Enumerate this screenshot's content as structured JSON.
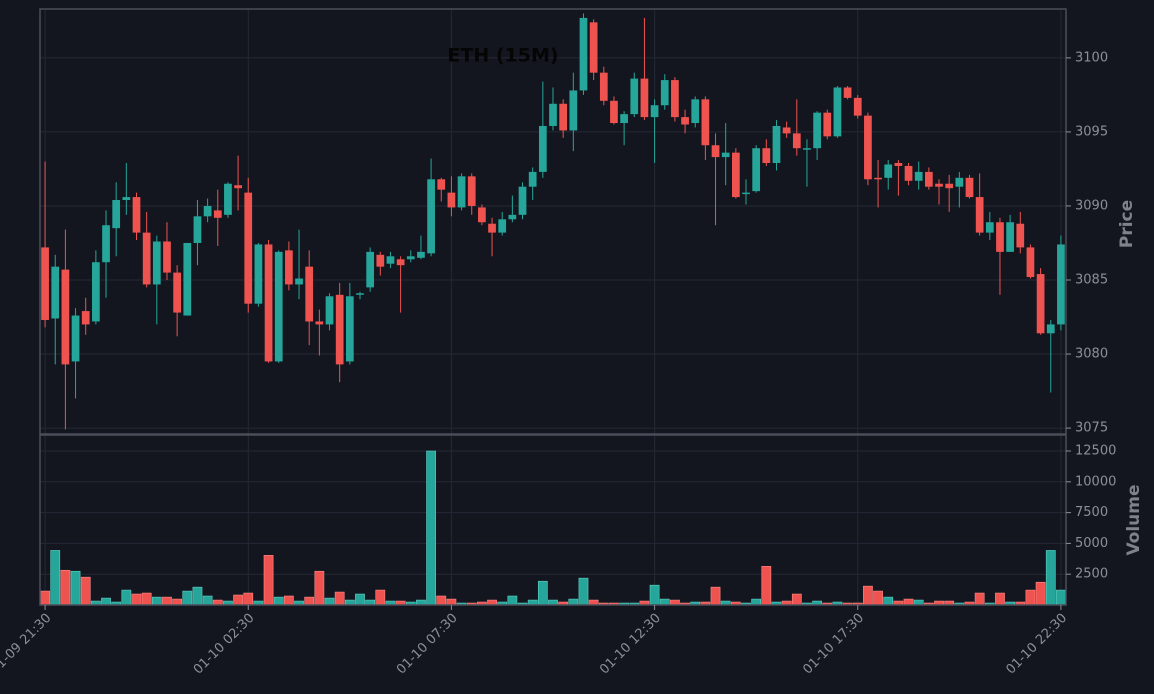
{
  "chart_data": [
    {
      "type": "candlestick",
      "title": "ETH (15M)",
      "ylabel": "Price",
      "up_color": "#26a69a",
      "down_color": "#ef5350",
      "grid": true,
      "xlim": [
        -0.5,
        100.5
      ],
      "ylim": [
        3074.6,
        3103.3
      ],
      "yticks": [
        3075,
        3080,
        3085,
        3090,
        3095,
        3100
      ],
      "open": [
        3087.2,
        3082.4,
        3085.7,
        3079.5,
        3082.9,
        3082.2,
        3086.2,
        3088.5,
        3090.4,
        3090.6,
        3088.2,
        3084.7,
        3087.6,
        3085.5,
        3082.6,
        3087.5,
        3089.3,
        3089.7,
        3089.4,
        3091.4,
        3090.9,
        3083.4,
        3087.4,
        3079.5,
        3087.0,
        3084.7,
        3085.9,
        3082.2,
        3082.0,
        3084.0,
        3079.5,
        3084.0,
        3084.5,
        3086.7,
        3086.1,
        3086.4,
        3086.4,
        3086.5,
        3086.8,
        3091.8,
        3090.9,
        3089.9,
        3092.0,
        3089.9,
        3088.8,
        3088.2,
        3089.1,
        3089.4,
        3091.3,
        3092.3,
        3095.4,
        3096.9,
        3095.1,
        3097.8,
        3102.4,
        3099.0,
        3097.1,
        3095.6,
        3096.2,
        3098.6,
        3096.0,
        3096.8,
        3098.5,
        3096.0,
        3095.6,
        3097.2,
        3094.1,
        3093.3,
        3093.6,
        3090.8,
        3091.0,
        3093.9,
        3092.9,
        3095.3,
        3094.9,
        3093.8,
        3093.9,
        3096.3,
        3094.7,
        3098.0,
        3097.3,
        3096.1,
        3091.9,
        3091.9,
        3092.9,
        3092.7,
        3091.7,
        3092.3,
        3091.5,
        3091.5,
        3091.3,
        3091.9,
        3090.6,
        3088.2,
        3088.9,
        3086.9,
        3088.8,
        3087.2,
        3085.4,
        3081.4,
        3082.0
      ],
      "high": [
        3093.0,
        3086.7,
        3088.4,
        3083.1,
        3083.8,
        3087.0,
        3089.7,
        3091.6,
        3092.9,
        3090.9,
        3089.6,
        3088.0,
        3088.9,
        3086.0,
        3087.5,
        3090.4,
        3090.5,
        3091.1,
        3091.6,
        3093.4,
        3091.9,
        3087.5,
        3087.7,
        3087.0,
        3087.6,
        3088.4,
        3087.0,
        3083.0,
        3084.1,
        3084.8,
        3084.8,
        3084.2,
        3087.2,
        3086.9,
        3086.9,
        3086.6,
        3087.0,
        3088.0,
        3093.2,
        3091.9,
        3092.0,
        3092.2,
        3092.2,
        3090.1,
        3089.2,
        3089.6,
        3090.7,
        3091.6,
        3092.6,
        3098.4,
        3098.0,
        3097.2,
        3099.0,
        3103.0,
        3102.6,
        3099.4,
        3097.4,
        3096.4,
        3099.0,
        3102.7,
        3097.2,
        3098.9,
        3098.7,
        3096.5,
        3097.4,
        3097.4,
        3094.9,
        3095.6,
        3093.9,
        3091.8,
        3094.1,
        3094.5,
        3095.8,
        3095.7,
        3097.2,
        3094.5,
        3096.4,
        3096.5,
        3098.1,
        3098.1,
        3097.5,
        3096.3,
        3093.1,
        3093.1,
        3093.1,
        3092.9,
        3093.0,
        3092.6,
        3091.8,
        3092.1,
        3092.3,
        3092.1,
        3092.2,
        3089.6,
        3089.2,
        3089.4,
        3089.6,
        3087.4,
        3085.8,
        3082.3,
        3088.0
      ],
      "low": [
        3081.8,
        3079.3,
        3074.9,
        3077.0,
        3081.3,
        3082.0,
        3083.8,
        3086.6,
        3089.4,
        3087.7,
        3084.5,
        3082.0,
        3085.0,
        3081.2,
        3082.6,
        3086.0,
        3088.9,
        3087.3,
        3089.2,
        3089.7,
        3082.8,
        3083.2,
        3079.4,
        3079.4,
        3084.3,
        3083.7,
        3080.6,
        3079.9,
        3081.6,
        3078.1,
        3079.3,
        3083.7,
        3084.2,
        3085.3,
        3085.8,
        3082.8,
        3086.2,
        3086.4,
        3086.6,
        3090.3,
        3089.3,
        3089.7,
        3089.4,
        3088.7,
        3086.6,
        3088.0,
        3088.9,
        3089.1,
        3090.4,
        3091.9,
        3095.1,
        3094.6,
        3093.7,
        3097.5,
        3098.5,
        3096.8,
        3095.5,
        3094.1,
        3096.0,
        3095.8,
        3092.9,
        3096.5,
        3095.7,
        3094.9,
        3095.3,
        3093.1,
        3088.7,
        3091.4,
        3090.5,
        3090.1,
        3090.9,
        3092.7,
        3092.4,
        3094.6,
        3093.4,
        3091.3,
        3093.1,
        3094.5,
        3094.6,
        3097.2,
        3095.9,
        3091.4,
        3089.9,
        3091.1,
        3090.7,
        3091.4,
        3091.1,
        3091.1,
        3090.1,
        3089.6,
        3089.9,
        3090.5,
        3088.0,
        3087.7,
        3084.0,
        3086.9,
        3086.8,
        3085.1,
        3081.3,
        3077.4,
        3081.6
      ],
      "close": [
        3082.3,
        3085.9,
        3079.3,
        3082.6,
        3082.0,
        3086.2,
        3088.7,
        3090.4,
        3090.6,
        3088.2,
        3084.7,
        3087.6,
        3085.5,
        3082.8,
        3087.5,
        3089.3,
        3090.0,
        3089.2,
        3091.5,
        3091.2,
        3083.4,
        3087.4,
        3079.5,
        3086.9,
        3084.7,
        3085.1,
        3082.2,
        3082.0,
        3083.9,
        3079.3,
        3083.9,
        3084.1,
        3086.9,
        3085.9,
        3086.6,
        3086.0,
        3086.6,
        3086.9,
        3091.8,
        3091.1,
        3089.9,
        3092.0,
        3090.0,
        3088.9,
        3088.2,
        3089.1,
        3089.4,
        3091.3,
        3092.3,
        3095.4,
        3096.9,
        3095.1,
        3097.8,
        3102.7,
        3099.0,
        3097.1,
        3095.6,
        3096.2,
        3098.6,
        3096.0,
        3096.8,
        3098.5,
        3096.0,
        3095.5,
        3097.2,
        3094.1,
        3093.3,
        3093.6,
        3090.6,
        3090.9,
        3093.9,
        3092.9,
        3095.4,
        3094.9,
        3093.9,
        3093.9,
        3096.3,
        3094.7,
        3098.0,
        3097.3,
        3096.1,
        3091.8,
        3091.8,
        3092.8,
        3092.7,
        3091.7,
        3092.3,
        3091.3,
        3091.3,
        3091.2,
        3091.9,
        3090.6,
        3088.2,
        3088.9,
        3086.9,
        3088.9,
        3087.2,
        3085.2,
        3081.4,
        3082.0,
        3087.4
      ]
    },
    {
      "type": "bar",
      "ylabel": "Volume",
      "grid": true,
      "xlim": [
        -0.5,
        100.5
      ],
      "ylim": [
        0,
        13800
      ],
      "yticks": [
        2500,
        5000,
        7500,
        10000,
        12500
      ],
      "xticks": [
        {
          "value": 0,
          "label": "01-09 21:30"
        },
        {
          "value": 20,
          "label": "01-10 02:30"
        },
        {
          "value": 40,
          "label": "01-10 07:30"
        },
        {
          "value": 60,
          "label": "01-10 12:30"
        },
        {
          "value": 80,
          "label": "01-10 17:30"
        },
        {
          "value": 100,
          "label": "01-10 22:30"
        }
      ],
      "values": [
        1130,
        4430,
        2820,
        2740,
        2260,
        320,
        560,
        240,
        1210,
        890,
        970,
        640,
        640,
        480,
        1130,
        1450,
        730,
        400,
        320,
        810,
        970,
        320,
        4030,
        640,
        730,
        320,
        640,
        2740,
        560,
        1050,
        400,
        890,
        400,
        1210,
        320,
        320,
        240,
        400,
        12500,
        730,
        480,
        160,
        160,
        240,
        400,
        240,
        730,
        160,
        400,
        1930,
        400,
        240,
        480,
        2180,
        400,
        160,
        160,
        160,
        160,
        320,
        1610,
        480,
        400,
        160,
        240,
        240,
        1450,
        320,
        240,
        160,
        480,
        3140,
        240,
        320,
        890,
        160,
        320,
        160,
        240,
        160,
        160,
        1530,
        1130,
        640,
        320,
        480,
        400,
        160,
        320,
        320,
        160,
        240,
        970,
        160,
        970,
        240,
        240,
        1210,
        1850,
        4430,
        1210
      ]
    }
  ]
}
